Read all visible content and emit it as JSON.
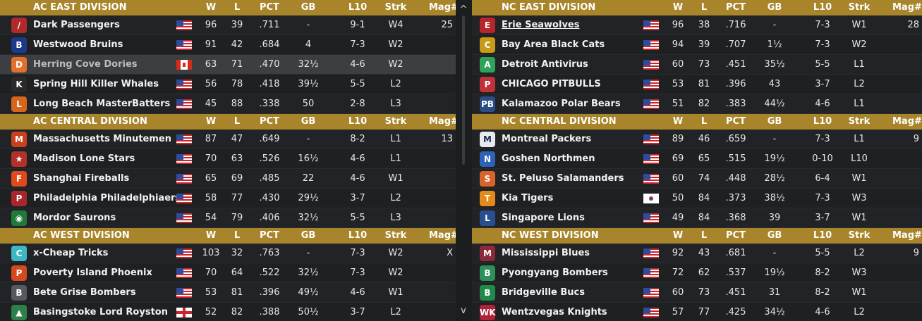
{
  "columns": {
    "w": "W",
    "l": "L",
    "pct": "PCT",
    "gb": "GB",
    "l10": "L10",
    "strk": "Strk",
    "mag": "Mag#"
  },
  "scroll": {
    "up": "^",
    "down": "v"
  },
  "left": [
    {
      "division": "AC EAST DIVISION",
      "teams": [
        {
          "name": "Dark Passengers",
          "flag": "us",
          "w": "96",
          "l": "39",
          "pct": ".711",
          "gb": "-",
          "l10": "9-1",
          "strk": "W4",
          "mag": "25",
          "logo": "/",
          "logo_color": "#b12a2a"
        },
        {
          "name": "Westwood Bruins",
          "flag": "us",
          "w": "91",
          "l": "42",
          "pct": ".684",
          "gb": "4",
          "l10": "7-3",
          "strk": "W2",
          "mag": "",
          "logo": "B",
          "logo_color": "#1d3a8a"
        },
        {
          "name": "Herring Cove Dories",
          "flag": "ca",
          "w": "63",
          "l": "71",
          "pct": ".470",
          "gb": "32½",
          "l10": "4-6",
          "strk": "W2",
          "mag": "",
          "logo": "D",
          "logo_color": "#e0702a",
          "selected": true
        },
        {
          "name": "Spring Hill Killer Whales",
          "flag": "us",
          "w": "56",
          "l": "78",
          "pct": ".418",
          "gb": "39½",
          "l10": "5-5",
          "strk": "L2",
          "mag": "",
          "logo": "K",
          "logo_color": "#2a2a2a"
        },
        {
          "name": "Long Beach MasterBatters",
          "flag": "us",
          "w": "45",
          "l": "88",
          "pct": ".338",
          "gb": "50",
          "l10": "2-8",
          "strk": "L3",
          "mag": "",
          "logo": "L",
          "logo_color": "#d7661d"
        }
      ]
    },
    {
      "division": "AC CENTRAL DIVISION",
      "teams": [
        {
          "name": "Massachusetts Minutemen",
          "flag": "us",
          "w": "87",
          "l": "47",
          "pct": ".649",
          "gb": "-",
          "l10": "8-2",
          "strk": "L1",
          "mag": "13",
          "logo": "M",
          "logo_color": "#c9401e"
        },
        {
          "name": "Madison Lone Stars",
          "flag": "us",
          "w": "70",
          "l": "63",
          "pct": ".526",
          "gb": "16½",
          "l10": "4-6",
          "strk": "L1",
          "mag": "",
          "logo": "★",
          "logo_color": "#b0322a"
        },
        {
          "name": "Shanghai Fireballs",
          "flag": "us",
          "w": "65",
          "l": "69",
          "pct": ".485",
          "gb": "22",
          "l10": "4-6",
          "strk": "W1",
          "mag": "",
          "logo": "F",
          "logo_color": "#e1481c"
        },
        {
          "name": "Philadelphia Philadelphiaers",
          "flag": "us",
          "w": "58",
          "l": "77",
          "pct": ".430",
          "gb": "29½",
          "l10": "3-7",
          "strk": "L2",
          "mag": "",
          "logo": "P",
          "logo_color": "#a9262c"
        },
        {
          "name": "Mordor Saurons",
          "flag": "us",
          "w": "54",
          "l": "79",
          "pct": ".406",
          "gb": "32½",
          "l10": "5-5",
          "strk": "L3",
          "mag": "",
          "logo": "◉",
          "logo_color": "#1f7a3a"
        }
      ]
    },
    {
      "division": "AC WEST DIVISION",
      "teams": [
        {
          "name": "x-Cheap Tricks",
          "flag": "us",
          "w": "103",
          "l": "32",
          "pct": ".763",
          "gb": "-",
          "l10": "7-3",
          "strk": "W2",
          "mag": "X",
          "logo": "C",
          "logo_color": "#3fb6c4"
        },
        {
          "name": "Poverty Island Phoenix",
          "flag": "us",
          "w": "70",
          "l": "64",
          "pct": ".522",
          "gb": "32½",
          "l10": "7-3",
          "strk": "W2",
          "mag": "",
          "logo": "P",
          "logo_color": "#d5491f"
        },
        {
          "name": "Bete Grise Bombers",
          "flag": "us",
          "w": "53",
          "l": "81",
          "pct": ".396",
          "gb": "49½",
          "l10": "4-6",
          "strk": "W1",
          "mag": "",
          "logo": "B",
          "logo_color": "#555a60"
        },
        {
          "name": "Basingstoke Lord Royston",
          "flag": "en",
          "w": "52",
          "l": "82",
          "pct": ".388",
          "gb": "50½",
          "l10": "3-7",
          "strk": "L2",
          "mag": "",
          "logo": "▲",
          "logo_color": "#2f7f4a"
        }
      ]
    }
  ],
  "right": [
    {
      "division": "NC EAST DIVISION",
      "teams": [
        {
          "name": "Erie Seawolves",
          "flag": "us",
          "w": "96",
          "l": "38",
          "pct": ".716",
          "gb": "-",
          "l10": "7-3",
          "strk": "W1",
          "mag": "28",
          "logo": "E",
          "logo_color": "#b8262c",
          "link": true
        },
        {
          "name": "Bay Area Black Cats",
          "flag": "us",
          "w": "94",
          "l": "39",
          "pct": ".707",
          "gb": "1½",
          "l10": "7-3",
          "strk": "W2",
          "mag": "",
          "logo": "C",
          "logo_color": "#c99a16"
        },
        {
          "name": "Detroit Antivirus",
          "flag": "us",
          "w": "60",
          "l": "73",
          "pct": ".451",
          "gb": "35½",
          "l10": "5-5",
          "strk": "L1",
          "mag": "",
          "logo": "A",
          "logo_color": "#2ea35a"
        },
        {
          "name": "CHICAGO PITBULLS",
          "flag": "us",
          "w": "53",
          "l": "81",
          "pct": ".396",
          "gb": "43",
          "l10": "3-7",
          "strk": "L2",
          "mag": "",
          "logo": "P",
          "logo_color": "#c0323a"
        },
        {
          "name": "Kalamazoo Polar Bears",
          "flag": "us",
          "w": "51",
          "l": "82",
          "pct": ".383",
          "gb": "44½",
          "l10": "4-6",
          "strk": "L1",
          "mag": "",
          "logo": "PB",
          "logo_color": "#2b4d86"
        }
      ]
    },
    {
      "division": "NC CENTRAL DIVISION",
      "teams": [
        {
          "name": "Montreal Packers",
          "flag": "us",
          "w": "89",
          "l": "46",
          "pct": ".659",
          "gb": "-",
          "l10": "7-3",
          "strk": "L1",
          "mag": "9",
          "logo": "M",
          "logo_color": "#e8e8ef"
        },
        {
          "name": "Goshen Northmen",
          "flag": "us",
          "w": "69",
          "l": "65",
          "pct": ".515",
          "gb": "19½",
          "l10": "0-10",
          "strk": "L10",
          "mag": "",
          "logo": "N",
          "logo_color": "#2c62b8"
        },
        {
          "name": "St. Peluso Salamanders",
          "flag": "us",
          "w": "60",
          "l": "74",
          "pct": ".448",
          "gb": "28½",
          "l10": "6-4",
          "strk": "W1",
          "mag": "",
          "logo": "S",
          "logo_color": "#d8642a"
        },
        {
          "name": "Kia Tigers",
          "flag": "kr",
          "w": "50",
          "l": "84",
          "pct": ".373",
          "gb": "38½",
          "l10": "7-3",
          "strk": "W3",
          "mag": "",
          "logo": "T",
          "logo_color": "#e38a1c"
        },
        {
          "name": "Singapore Lions",
          "flag": "us",
          "w": "49",
          "l": "84",
          "pct": ".368",
          "gb": "39",
          "l10": "3-7",
          "strk": "W1",
          "mag": "",
          "logo": "L",
          "logo_color": "#2a4f8f"
        }
      ]
    },
    {
      "division": "NC WEST DIVISION",
      "teams": [
        {
          "name": "Mississippi Blues",
          "flag": "us",
          "w": "92",
          "l": "43",
          "pct": ".681",
          "gb": "-",
          "l10": "5-5",
          "strk": "L2",
          "mag": "9",
          "logo": "M",
          "logo_color": "#8a2a3a"
        },
        {
          "name": "Pyongyang Bombers",
          "flag": "us",
          "w": "72",
          "l": "62",
          "pct": ".537",
          "gb": "19½",
          "l10": "8-2",
          "strk": "W3",
          "mag": "",
          "logo": "B",
          "logo_color": "#2f8f5a"
        },
        {
          "name": "Bridgeville Bucs",
          "flag": "us",
          "w": "60",
          "l": "73",
          "pct": ".451",
          "gb": "31",
          "l10": "8-2",
          "strk": "W1",
          "mag": "",
          "logo": "B",
          "logo_color": "#1f8a4a"
        },
        {
          "name": "Wentzvegas Knights",
          "flag": "us",
          "w": "57",
          "l": "77",
          "pct": ".425",
          "gb": "34½",
          "l10": "4-6",
          "strk": "L2",
          "mag": "",
          "logo": "WK",
          "logo_color": "#b0223a"
        }
      ]
    }
  ]
}
